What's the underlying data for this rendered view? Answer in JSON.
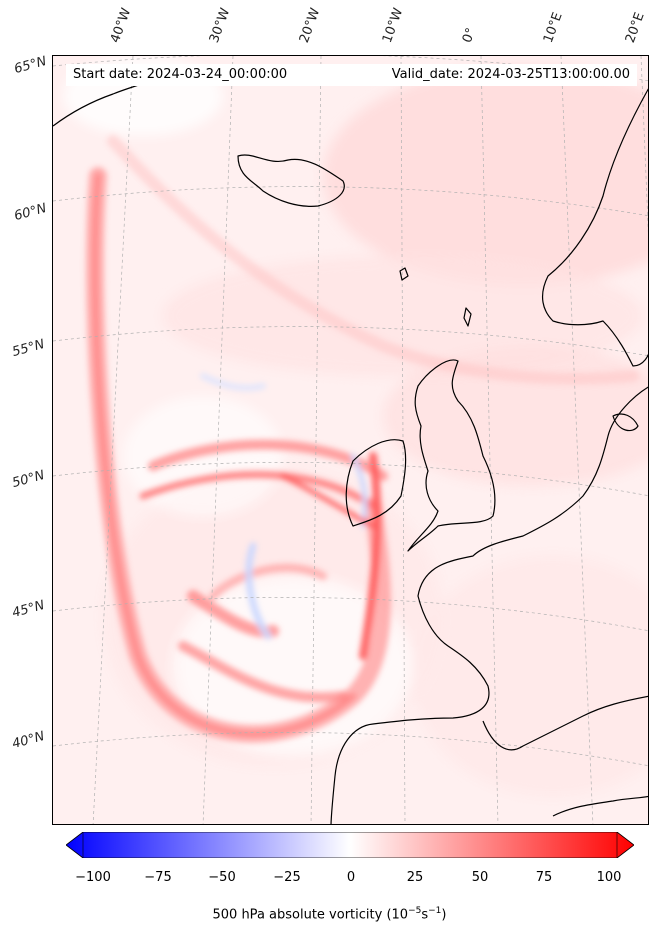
{
  "info": {
    "start_date": "Start date: 2024-03-24_00:00:00",
    "valid_date": "Valid_date: 2024-03-25T13:00:00.00"
  },
  "lon_labels": [
    "40°W",
    "30°W",
    "20°W",
    "10°W",
    "0°",
    "10°E",
    "20°E"
  ],
  "lat_labels": [
    "65°N",
    "60°N",
    "55°N",
    "50°N",
    "45°N",
    "40°N"
  ],
  "colorbar": {
    "ticks": [
      "−100",
      "−75",
      "−50",
      "−25",
      "0",
      "25",
      "50",
      "75",
      "100"
    ],
    "label": "500 hPa absolute vorticity (10",
    "label_exp1": "−5",
    "label_mid": "s",
    "label_exp2": "−1",
    "label_end": ")",
    "min": -100,
    "max": 100,
    "colors": {
      "low": "#0000ff",
      "mid": "#ffffff",
      "high": "#ff0000"
    }
  },
  "colors": {
    "coastline": "#000000",
    "land_tint": "#fff3f3",
    "gridline": "#b0b0b0"
  }
}
